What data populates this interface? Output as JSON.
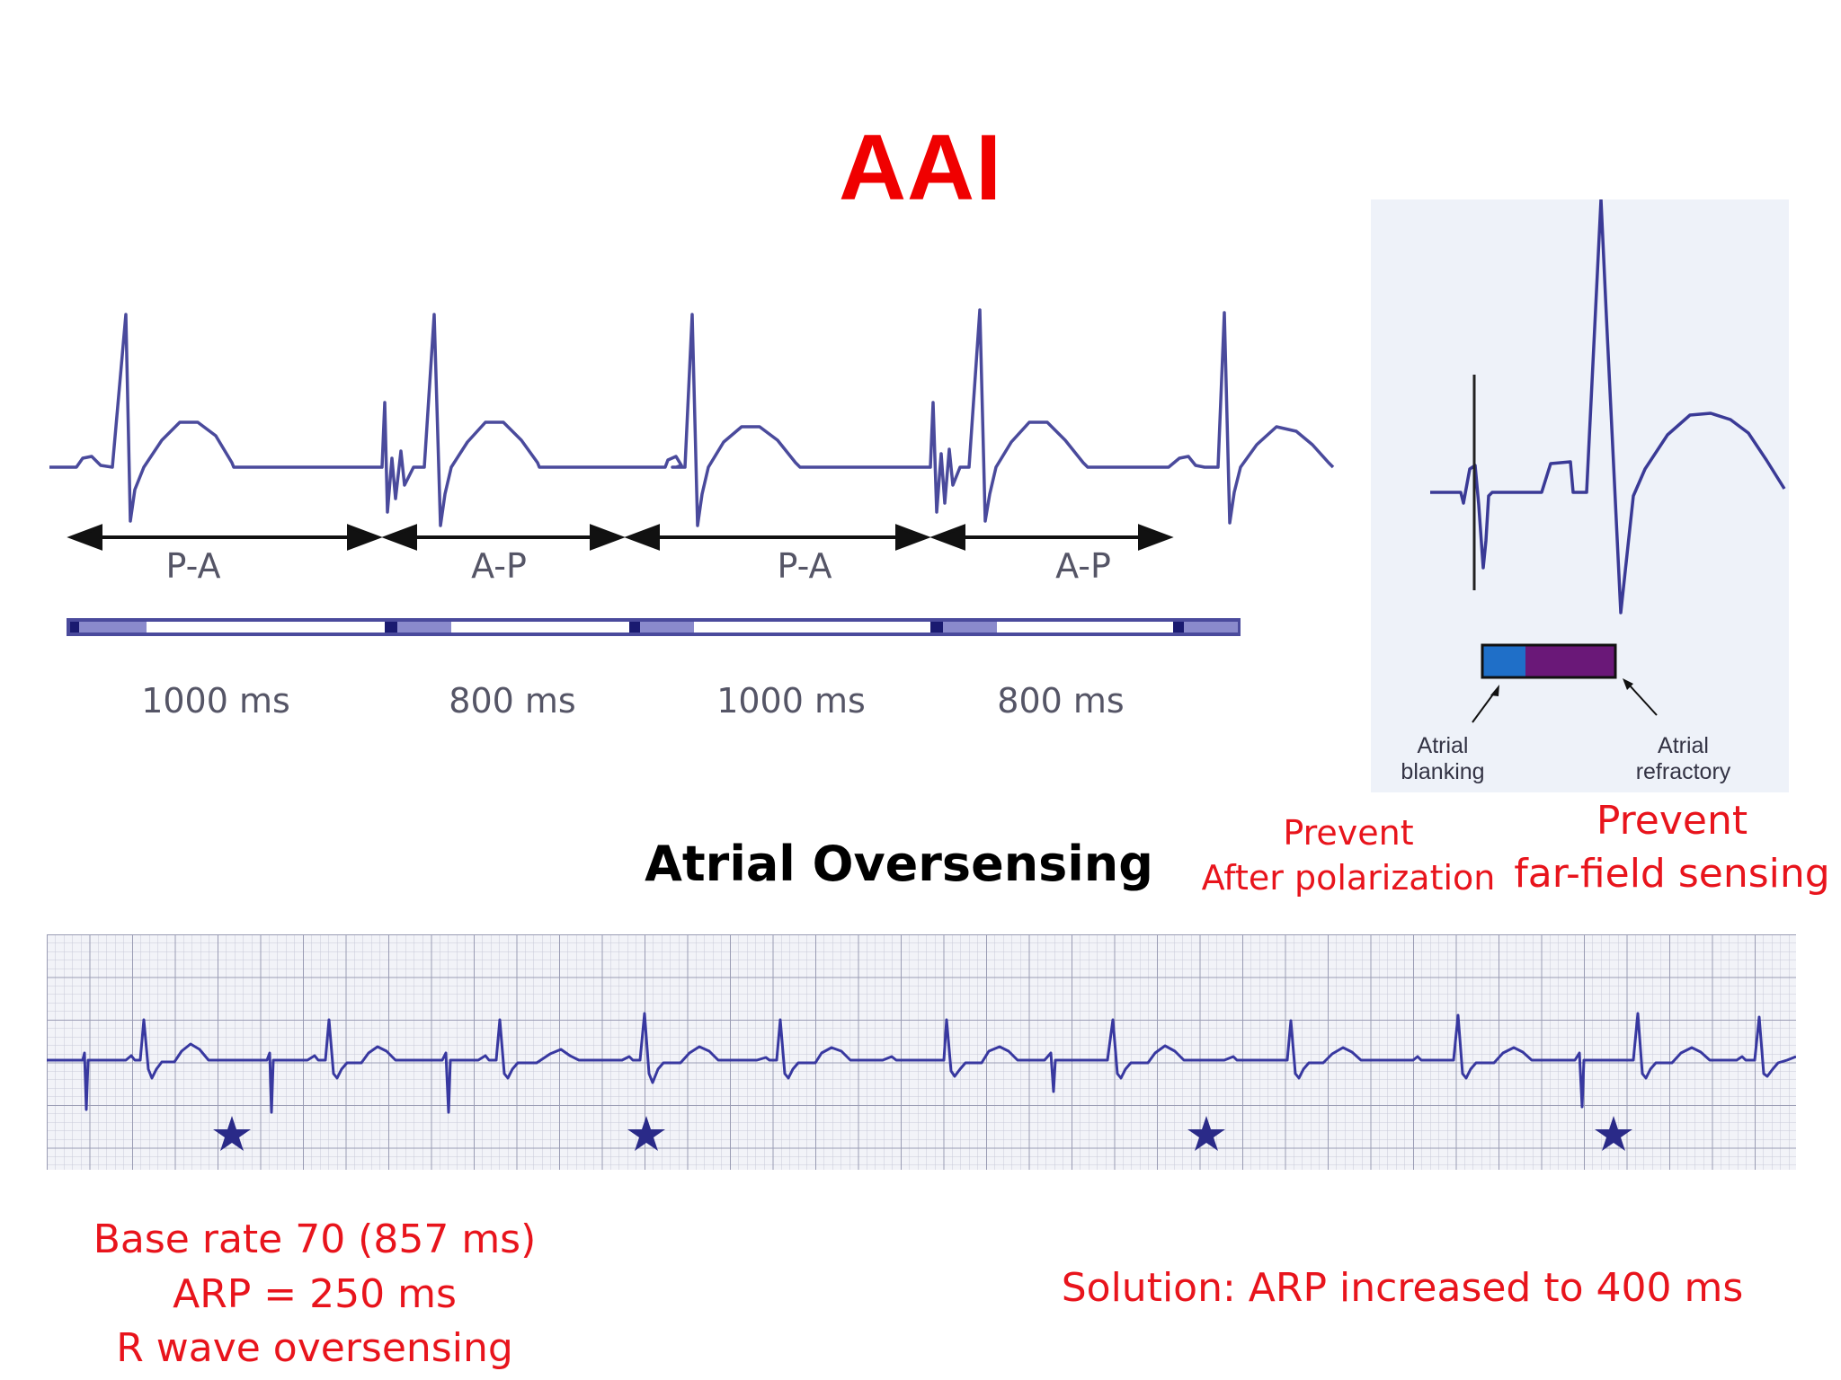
{
  "slide": {
    "title": "AAI",
    "subtitle": "Atrial Oversensing"
  },
  "timing_diagram": {
    "intervals": [
      {
        "label": "P-A",
        "duration": "1000 ms"
      },
      {
        "label": "A-P",
        "duration": "800 ms"
      },
      {
        "label": "P-A",
        "duration": "1000 ms"
      },
      {
        "label": "A-P",
        "duration": "800 ms"
      }
    ]
  },
  "inset": {
    "blanking_label": "Atrial blanking",
    "refractory_label": "Atrial refractory",
    "blanking_color": "#1f6fc8",
    "refractory_color": "#6a1878"
  },
  "notes": {
    "prevent_after_polarization": [
      "Prevent",
      "After polarization"
    ],
    "prevent_far_field": [
      "Prevent",
      "far-field sensing"
    ],
    "base_rate": "Base rate 70 (857 ms)",
    "arp": "ARP = 250 ms",
    "r_wave": "R wave oversensing",
    "solution": "Solution: ARP increased to 400 ms"
  },
  "colors": {
    "title": "#f00000",
    "notes": "#e8141c",
    "trace": "#4a4a9c",
    "star": "#2a2a88"
  }
}
